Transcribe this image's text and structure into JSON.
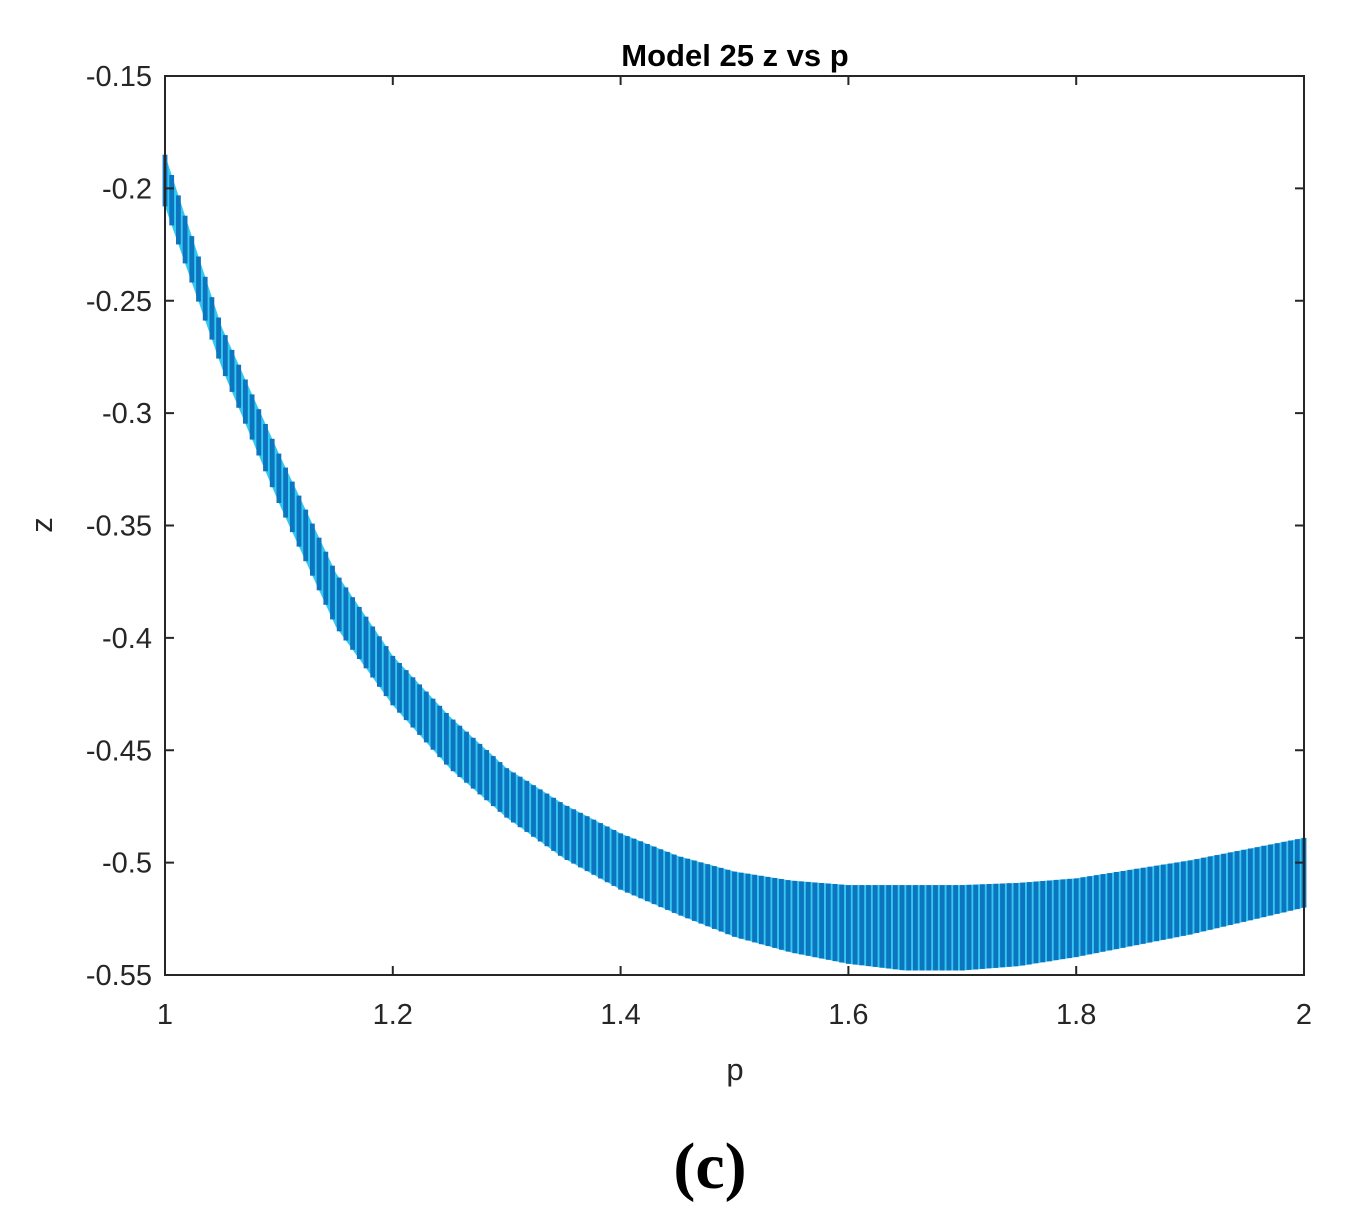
{
  "colors": {
    "band_fill": "#0d74c0",
    "band_highlight": "#33c8ef",
    "axis": "#262626",
    "background": "#ffffff"
  },
  "panel_label": "(c)",
  "chart_data": {
    "type": "area",
    "title": "Model 25 z vs p",
    "xlabel": "p",
    "ylabel": "z",
    "xlim": [
      1,
      2
    ],
    "ylim": [
      -0.55,
      -0.15
    ],
    "xticks": [
      1,
      1.2,
      1.4,
      1.6,
      1.8,
      2
    ],
    "xtick_labels": [
      "1",
      "1.2",
      "1.4",
      "1.6",
      "1.8",
      "2"
    ],
    "yticks": [
      -0.15,
      -0.2,
      -0.25,
      -0.3,
      -0.35,
      -0.4,
      -0.45,
      -0.5,
      -0.55
    ],
    "ytick_labels": [
      "-0.15",
      "-0.2",
      "-0.25",
      "-0.3",
      "-0.35",
      "-0.4",
      "-0.45",
      "-0.5",
      "-0.55"
    ],
    "grid": false,
    "series": [
      {
        "x": [
          1.0,
          1.05,
          1.1,
          1.15,
          1.2,
          1.25,
          1.3,
          1.35,
          1.4,
          1.45,
          1.5,
          1.55,
          1.6,
          1.65,
          1.7,
          1.75,
          1.8,
          1.85,
          1.9,
          1.95,
          2.0
        ],
        "upper": [
          -0.185,
          -0.262,
          -0.318,
          -0.371,
          -0.408,
          -0.435,
          -0.458,
          -0.474,
          -0.487,
          -0.497,
          -0.504,
          -0.508,
          -0.51,
          -0.51,
          -0.51,
          -0.509,
          -0.507,
          -0.503,
          -0.499,
          -0.494,
          -0.489
        ],
        "lower": [
          -0.208,
          -0.28,
          -0.34,
          -0.395,
          -0.43,
          -0.458,
          -0.48,
          -0.498,
          -0.512,
          -0.523,
          -0.533,
          -0.54,
          -0.545,
          -0.548,
          -0.548,
          -0.546,
          -0.542,
          -0.537,
          -0.532,
          -0.526,
          -0.52
        ]
      }
    ]
  }
}
